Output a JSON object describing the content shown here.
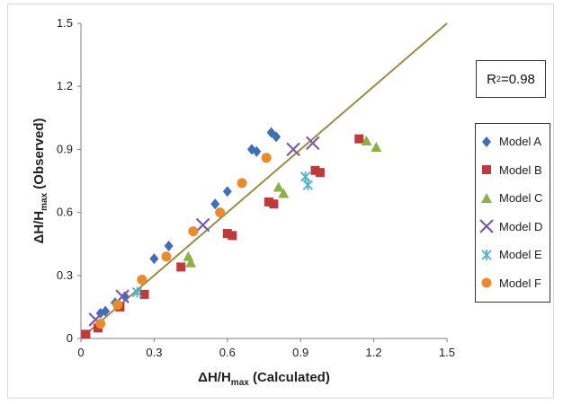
{
  "chart_data": {
    "type": "scatter",
    "xlabel": "ΔH/H",
    "xlabel_sub": "max",
    "xlabel_suffix": " (Calculated)",
    "ylabel": "ΔH/H",
    "ylabel_sub": "max",
    "ylabel_suffix": " (Observed)",
    "xlim": [
      0,
      1.5
    ],
    "ylim": [
      0,
      1.5
    ],
    "xticks": [
      "0",
      "0.3",
      "0.6",
      "0.9",
      "1.2",
      "1.5"
    ],
    "yticks": [
      "0",
      "0.3",
      "0.6",
      "0.9",
      "1.2",
      "1.5"
    ],
    "grid": false,
    "legend_position": "right",
    "reference_line": {
      "x": [
        0,
        1.5
      ],
      "y": [
        0,
        1.5
      ],
      "color": "#9c8b46"
    },
    "annotation": {
      "prefix": "R",
      "superscript": "2",
      "suffix": "=0.98"
    },
    "series": [
      {
        "name": "Model A",
        "marker": "diamond",
        "color": "#3f6fb7",
        "points": [
          [
            0.08,
            0.12
          ],
          [
            0.1,
            0.13
          ],
          [
            0.14,
            0.17
          ],
          [
            0.18,
            0.2
          ],
          [
            0.3,
            0.38
          ],
          [
            0.36,
            0.44
          ],
          [
            0.55,
            0.64
          ],
          [
            0.6,
            0.7
          ],
          [
            0.7,
            0.9
          ],
          [
            0.72,
            0.89
          ],
          [
            0.78,
            0.98
          ],
          [
            0.8,
            0.96
          ]
        ]
      },
      {
        "name": "Model B",
        "marker": "square",
        "color": "#c0393b",
        "points": [
          [
            0.02,
            0.02
          ],
          [
            0.07,
            0.05
          ],
          [
            0.16,
            0.15
          ],
          [
            0.26,
            0.21
          ],
          [
            0.41,
            0.34
          ],
          [
            0.6,
            0.5
          ],
          [
            0.62,
            0.49
          ],
          [
            0.77,
            0.65
          ],
          [
            0.79,
            0.64
          ],
          [
            0.96,
            0.8
          ],
          [
            0.98,
            0.79
          ],
          [
            1.14,
            0.95
          ]
        ]
      },
      {
        "name": "Model C",
        "marker": "triangle",
        "color": "#8bb243",
        "points": [
          [
            0.44,
            0.39
          ],
          [
            0.45,
            0.36
          ],
          [
            0.81,
            0.72
          ],
          [
            0.83,
            0.69
          ],
          [
            1.17,
            0.94
          ],
          [
            1.21,
            0.91
          ]
        ]
      },
      {
        "name": "Model D",
        "marker": "x",
        "color": "#7a5ba8",
        "points": [
          [
            0.06,
            0.09
          ],
          [
            0.17,
            0.2
          ],
          [
            0.5,
            0.54
          ],
          [
            0.87,
            0.9
          ],
          [
            0.95,
            0.93
          ]
        ]
      },
      {
        "name": "Model E",
        "marker": "asterisk",
        "color": "#4cb3c9",
        "points": [
          [
            0.23,
            0.22
          ],
          [
            0.92,
            0.77
          ],
          [
            0.93,
            0.73
          ]
        ]
      },
      {
        "name": "Model F",
        "marker": "circle",
        "color": "#e98a2c",
        "points": [
          [
            0.08,
            0.07
          ],
          [
            0.15,
            0.16
          ],
          [
            0.25,
            0.28
          ],
          [
            0.35,
            0.39
          ],
          [
            0.46,
            0.51
          ],
          [
            0.57,
            0.6
          ],
          [
            0.66,
            0.74
          ],
          [
            0.76,
            0.86
          ]
        ]
      }
    ]
  }
}
